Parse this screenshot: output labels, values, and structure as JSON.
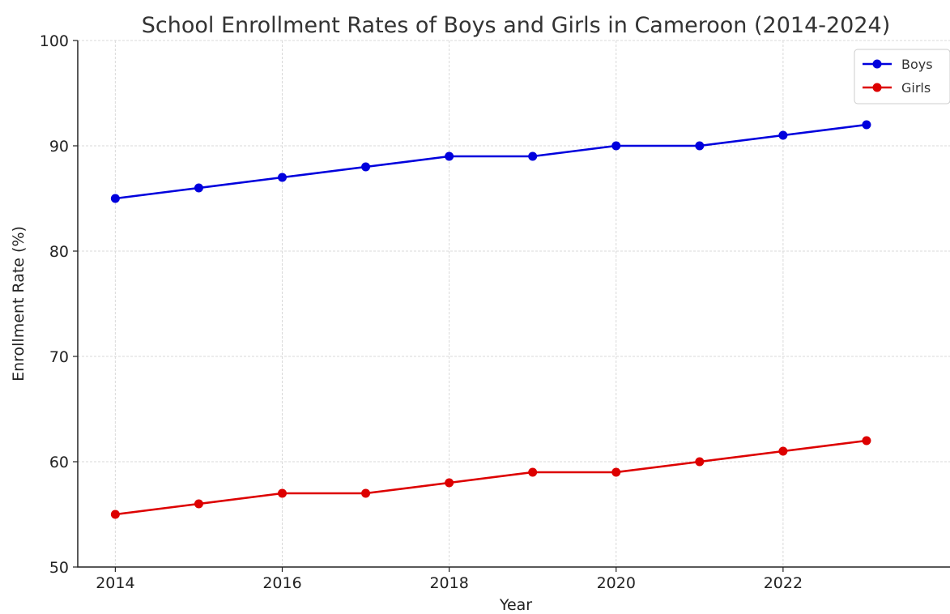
{
  "chart_data": {
    "type": "line",
    "title": "School Enrollment Rates of Boys and Girls in Cameroon (2014-2024)",
    "xlabel": "Year",
    "ylabel": "Enrollment Rate (%)",
    "x": [
      2014,
      2015,
      2016,
      2017,
      2018,
      2019,
      2020,
      2021,
      2022,
      2023
    ],
    "xticks": [
      2014,
      2016,
      2018,
      2020,
      2022
    ],
    "yticks": [
      50,
      60,
      70,
      80,
      90,
      100
    ],
    "xlim": [
      2013.55,
      2024.0
    ],
    "ylim": [
      50,
      100
    ],
    "grid": true,
    "legend_position": "top-right",
    "series": [
      {
        "name": "Boys",
        "color": "#0000dd",
        "values": [
          85,
          86,
          87,
          88,
          89,
          89,
          90,
          90,
          91,
          92
        ]
      },
      {
        "name": "Girls",
        "color": "#dd0000",
        "values": [
          55,
          56,
          57,
          57,
          58,
          59,
          59,
          60,
          61,
          62
        ]
      }
    ]
  }
}
